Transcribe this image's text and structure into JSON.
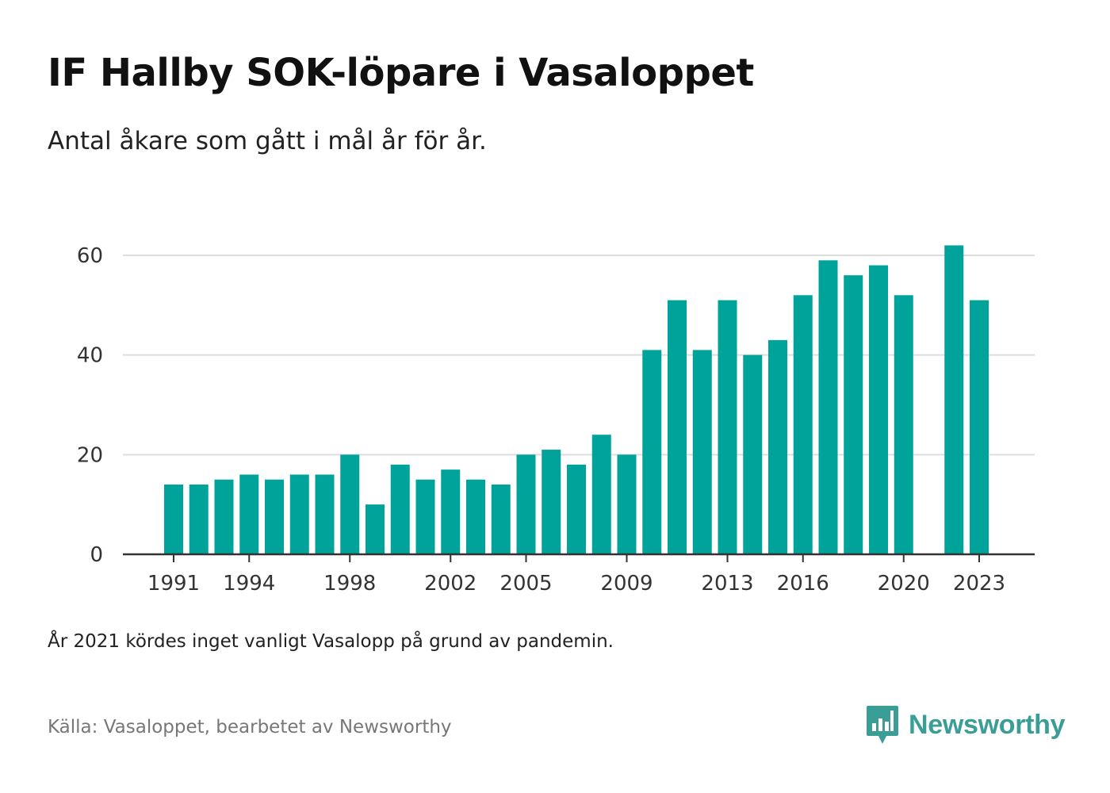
{
  "title": "IF Hallby SOK-löpare i Vasaloppet",
  "subtitle": "Antal åkare som gått i mål år för år.",
  "note": "År 2021 kördes inget vanligt Vasalopp på grund av pandemin.",
  "source": "Källa: Vasaloppet, bearbetet av Newsworthy",
  "brand": {
    "name": "Newsworthy",
    "color": "#3a9e96",
    "icon": "newsworthy-logo-icon"
  },
  "colors": {
    "bar": "#00a39a",
    "grid": "#dddddd",
    "axis": "#333333"
  },
  "chart_data": {
    "type": "bar",
    "title": "IF Hallby SOK-löpare i Vasaloppet",
    "subtitle": "Antal åkare som gått i mål år för år.",
    "xlabel": "",
    "ylabel": "",
    "categories": [
      1991,
      1992,
      1993,
      1994,
      1995,
      1996,
      1997,
      1998,
      1999,
      2000,
      2001,
      2002,
      2003,
      2004,
      2005,
      2006,
      2007,
      2008,
      2009,
      2010,
      2011,
      2012,
      2013,
      2014,
      2015,
      2016,
      2017,
      2018,
      2019,
      2020,
      2021,
      2022,
      2023
    ],
    "values": [
      14,
      14,
      15,
      16,
      15,
      16,
      16,
      20,
      10,
      18,
      15,
      17,
      15,
      14,
      20,
      21,
      18,
      24,
      20,
      41,
      51,
      41,
      51,
      40,
      43,
      52,
      59,
      56,
      58,
      52,
      null,
      62,
      51
    ],
    "x_tick_labels": [
      "1991",
      "1994",
      "1998",
      "2002",
      "2005",
      "2009",
      "2013",
      "2016",
      "2020",
      "2023"
    ],
    "y_ticks": [
      0,
      20,
      40,
      60
    ],
    "ylim": [
      0,
      70
    ],
    "grid": true,
    "legend": "none"
  }
}
